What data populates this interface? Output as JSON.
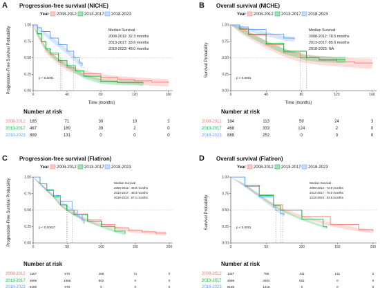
{
  "colors": {
    "c2008": "#f8766d",
    "c2013": "#00ba38",
    "c2018": "#619cff"
  },
  "panels": [
    {
      "letter": "A",
      "title": "Progression-free survival (NICHE)",
      "ylabel": "Progression-Free Survival Probability",
      "xlabel": "Time (months)",
      "pvalue": "p < 0.0001",
      "median_title": "Median Survival",
      "median_lines": [
        "2008-2012: 32.3 months",
        "2013-2017: 33.6 months",
        "2018-2023: 48.0 months"
      ],
      "risk_title": "Number at risk"
    },
    {
      "letter": "B",
      "title": "Overall survival (NICHE)",
      "ylabel": "Survival Probability",
      "xlabel": "Time (months)",
      "pvalue": "p < 0.0001",
      "median_title": "Median Survival",
      "median_lines": [
        "2008-2012: 78.5 months",
        "2013-2017: 85.6 months",
        "2018-2023: NA"
      ],
      "risk_title": "Number at risk"
    },
    {
      "letter": "C",
      "title": "Progression-free survival (Flatiron)",
      "ylabel": "Progression-Free Survival Probability",
      "xlabel": "Time (months)",
      "pvalue": "p < 0.00027",
      "median_title": "Median Survival",
      "median_lines": [
        "2008-2012 : 49.9 months",
        "2013-2017 : 49.3 months",
        "2018-2023 : 57.1 months"
      ],
      "risk_title": "Number at risk"
    },
    {
      "letter": "D",
      "title": "Overall survival (Flatiron)",
      "ylabel": "Survival Probability",
      "xlabel": "Time (months)",
      "pvalue": "p < 0.0001",
      "median_title": "Median Survival",
      "median_lines": [
        "2008-2012 : 72.9 months",
        "2013-2017 : 70.0 months",
        "2018-2023 : 63.5 months"
      ],
      "risk_title": "Number at risk"
    }
  ],
  "chart_data": [
    {
      "type": "line",
      "title": "Progression-free survival (NICHE)",
      "xlabel": "Time (months)",
      "ylabel": "Progression-Free Survival Probability",
      "xlim": [
        0,
        165
      ],
      "ylim": [
        0,
        1
      ],
      "xticks": [
        0,
        40,
        80,
        120,
        160
      ],
      "yticks": [
        0,
        0.25,
        0.5,
        0.75,
        1
      ],
      "ytick_labels": [
        "0.00",
        "0.25",
        "0.50",
        "0.75",
        "1.00"
      ],
      "legend_title": "Year",
      "series": [
        {
          "name": "2008-2012",
          "x": [
            0,
            5,
            10,
            15,
            20,
            30,
            40,
            50,
            60,
            80,
            100,
            120,
            140,
            160
          ],
          "y": [
            1,
            0.86,
            0.74,
            0.62,
            0.55,
            0.44,
            0.35,
            0.3,
            0.26,
            0.2,
            0.17,
            0.15,
            0.13,
            0.12
          ],
          "ci": 0.06
        },
        {
          "name": "2013-2017",
          "x": [
            0,
            5,
            10,
            15,
            20,
            30,
            40,
            50,
            60,
            80,
            100,
            120,
            130
          ],
          "y": [
            1,
            0.87,
            0.75,
            0.64,
            0.57,
            0.46,
            0.38,
            0.3,
            0.22,
            0.14,
            0.12,
            0.12,
            0.11
          ],
          "ci": 0.04
        },
        {
          "name": "2018-2023",
          "x": [
            0,
            5,
            10,
            20,
            30,
            40,
            48,
            55,
            58
          ],
          "y": [
            1,
            0.96,
            0.9,
            0.8,
            0.7,
            0.6,
            0.5,
            0.42,
            0.38
          ],
          "ci": 0.05
        }
      ],
      "medians": [
        32.3,
        33.6,
        48.0
      ],
      "risk_times": [
        0,
        40,
        80,
        120,
        160
      ],
      "risk_table": [
        {
          "name": "2008-2012",
          "values": [
            "185",
            "71",
            "30",
            "10",
            "2"
          ]
        },
        {
          "name": "2013-2017",
          "values": [
            "467",
            "189",
            "39",
            "2",
            "0"
          ]
        },
        {
          "name": "2018-2023",
          "values": [
            "889",
            "131",
            "0",
            "0",
            "0"
          ]
        }
      ]
    },
    {
      "type": "line",
      "title": "Overall survival (NICHE)",
      "xlabel": "Time (months)",
      "ylabel": "Survival Probability",
      "xlim": [
        0,
        165
      ],
      "ylim": [
        0,
        1
      ],
      "xticks": [
        0,
        40,
        80,
        120,
        160
      ],
      "yticks": [
        0,
        0.25,
        0.5,
        0.75,
        1
      ],
      "ytick_labels": [
        "0.00",
        "0.25",
        "0.50",
        "0.75",
        "1.00"
      ],
      "legend_title": "Year",
      "series": [
        {
          "name": "2008-2012",
          "x": [
            0,
            10,
            20,
            40,
            60,
            78.5,
            100,
            120,
            140,
            160
          ],
          "y": [
            1,
            0.93,
            0.85,
            0.7,
            0.58,
            0.5,
            0.46,
            0.44,
            0.42,
            0.41
          ],
          "ci": 0.08
        },
        {
          "name": "2013-2017",
          "x": [
            0,
            10,
            20,
            40,
            60,
            85.6,
            100,
            120,
            130
          ],
          "y": [
            1,
            0.94,
            0.86,
            0.72,
            0.6,
            0.5,
            0.48,
            0.47,
            0.47
          ],
          "ci": 0.05
        },
        {
          "name": "2018-2023",
          "x": [
            0,
            10,
            20,
            40,
            60,
            72
          ],
          "y": [
            1,
            0.97,
            0.93,
            0.86,
            0.8,
            0.78
          ],
          "ci": 0.04
        }
      ],
      "medians": [
        78.5,
        85.6
      ],
      "risk_times": [
        0,
        40,
        80,
        120,
        160
      ],
      "risk_table": [
        {
          "name": "2008-2012",
          "values": [
            "184",
            "113",
            "59",
            "24",
            "3"
          ]
        },
        {
          "name": "2013-2017",
          "values": [
            "468",
            "333",
            "124",
            "2",
            "0"
          ]
        },
        {
          "name": "2018-2023",
          "values": [
            "889",
            "252",
            "0",
            "0",
            "0"
          ]
        }
      ]
    },
    {
      "type": "line",
      "title": "Progression-free survival (Flatiron)",
      "xlabel": "",
      "ylabel": "Progression-Free Survival Probability",
      "xlim": [
        0,
        205
      ],
      "ylim": [
        0,
        1
      ],
      "xticks": [
        0,
        50,
        100,
        150,
        200
      ],
      "yticks": [
        0,
        0.25,
        0.5,
        0.75,
        1
      ],
      "ytick_labels": [
        "0.00",
        "0.25",
        "0.50",
        "0.75",
        "1.00"
      ],
      "legend_title": "Year",
      "series": [
        {
          "name": "2008-2012",
          "x": [
            0,
            10,
            20,
            30,
            40,
            49.9,
            60,
            80,
            100,
            120,
            140,
            160,
            180,
            195
          ],
          "y": [
            1,
            0.9,
            0.8,
            0.7,
            0.58,
            0.5,
            0.44,
            0.35,
            0.28,
            0.23,
            0.19,
            0.17,
            0.15,
            0.14
          ],
          "ci": 0.03
        },
        {
          "name": "2013-2017",
          "x": [
            0,
            10,
            20,
            30,
            40,
            49.3,
            60,
            80,
            100,
            120,
            135
          ],
          "y": [
            1,
            0.9,
            0.8,
            0.7,
            0.58,
            0.5,
            0.43,
            0.33,
            0.25,
            0.18,
            0.14
          ],
          "ci": 0.02
        },
        {
          "name": "2018-2023",
          "x": [
            0,
            10,
            20,
            30,
            40,
            57.1,
            65,
            72,
            75
          ],
          "y": [
            1,
            0.9,
            0.81,
            0.72,
            0.63,
            0.5,
            0.43,
            0.35,
            0.3
          ],
          "ci": 0.03
        }
      ],
      "medians": [
        49.9,
        49.3,
        57.1
      ],
      "risk_times": [
        0,
        50,
        100,
        150,
        200
      ],
      "risk_table": [
        {
          "name": "2008-2012",
          "values": [
            "1357",
            "570",
            "269",
            "71",
            "0"
          ]
        },
        {
          "name": "2013-2017",
          "values": [
            "4999",
            "1866",
            "502",
            "0",
            "0"
          ]
        },
        {
          "name": "2018-2023",
          "values": [
            "8186",
            "976",
            "0",
            "0",
            "0"
          ]
        }
      ]
    },
    {
      "type": "line",
      "title": "Overall survival (Flatiron)",
      "xlabel": "",
      "ylabel": "Survival Probability",
      "xlim": [
        0,
        205
      ],
      "ylim": [
        0,
        1
      ],
      "xticks": [
        0,
        50,
        100,
        150,
        200
      ],
      "yticks": [
        0,
        0.25,
        0.5,
        0.75,
        1
      ],
      "ytick_labels": [
        "0.00",
        "0.25",
        "0.50",
        "0.75",
        "1.00"
      ],
      "legend_title": "Year",
      "series": [
        {
          "name": "2008-2012",
          "x": [
            0,
            20,
            40,
            60,
            72.9,
            100,
            140,
            180,
            200
          ],
          "y": [
            1,
            0.88,
            0.73,
            0.58,
            0.5,
            0.4,
            0.28,
            0.2,
            0.18
          ],
          "ci": 0.03
        },
        {
          "name": "2013-2017",
          "x": [
            0,
            20,
            40,
            60,
            70,
            100,
            130,
            135
          ],
          "y": [
            1,
            0.88,
            0.72,
            0.57,
            0.5,
            0.36,
            0.25,
            0.23
          ],
          "ci": 0.02
        },
        {
          "name": "2018-2023",
          "x": [
            0,
            20,
            40,
            60,
            63.5,
            70,
            75
          ],
          "y": [
            1,
            0.86,
            0.7,
            0.54,
            0.5,
            0.45,
            0.42
          ],
          "ci": 0.02
        }
      ],
      "medians": [
        72.9,
        70.0,
        63.5
      ],
      "risk_times": [
        0,
        50,
        100,
        150,
        200
      ],
      "risk_table": [
        {
          "name": "2008-2012",
          "values": [
            "1357",
            "786",
            "431",
            "141",
            "0"
          ]
        },
        {
          "name": "2013-2017",
          "values": [
            "4999",
            "2602",
            "631",
            "0",
            "0"
          ]
        },
        {
          "name": "2018-2023",
          "values": [
            "8186",
            "1416",
            "0",
            "0",
            "0"
          ]
        }
      ]
    }
  ]
}
